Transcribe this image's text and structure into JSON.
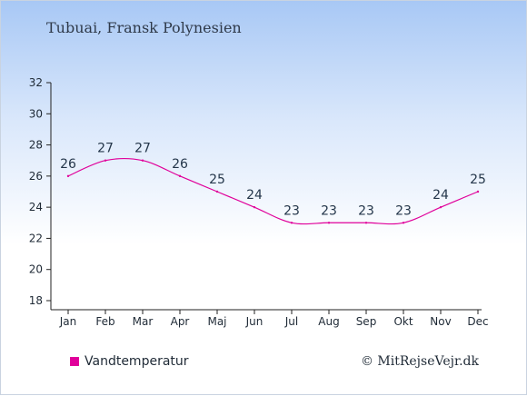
{
  "header": {
    "title": "Tubuai, Fransk Polynesien"
  },
  "footer": {
    "credit": "© MitRejseVejr.dk"
  },
  "chart_data": {
    "type": "line",
    "title": "Tubuai, Fransk Polynesien",
    "categories": [
      "Jan",
      "Feb",
      "Mar",
      "Apr",
      "Maj",
      "Jun",
      "Jul",
      "Aug",
      "Sep",
      "Okt",
      "Nov",
      "Dec"
    ],
    "series": [
      {
        "name": "Vandtemperatur",
        "color": "#e0009a",
        "values": [
          26,
          27,
          27,
          26,
          25,
          24,
          23,
          23,
          23,
          23,
          24,
          25
        ]
      }
    ],
    "ylim": [
      18,
      32
    ],
    "yticks": [
      18,
      20,
      22,
      24,
      26,
      28,
      30,
      32
    ],
    "legend": "bottom-left",
    "grid": false
  }
}
